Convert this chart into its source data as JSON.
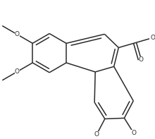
{
  "bg_color": "#ffffff",
  "line_color": "#2a2a2a",
  "line_width": 1.1,
  "font_size": 6.4,
  "fig_width": 2.2,
  "fig_height": 1.97,
  "dpi": 100,
  "xlim": [
    -1.15,
    1.15
  ],
  "ylim": [
    -1.08,
    0.92
  ]
}
